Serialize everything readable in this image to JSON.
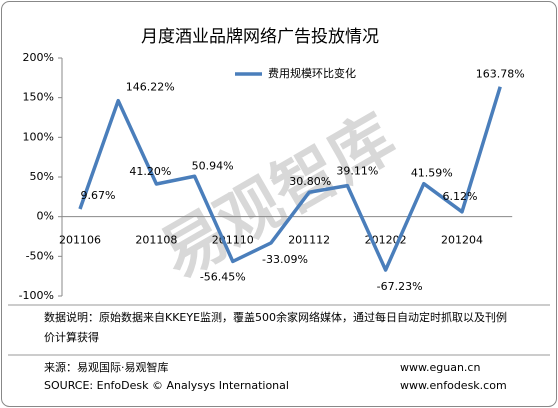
{
  "chart_data": {
    "type": "line",
    "title": "月度酒业品牌网络广告投放情况",
    "categories": [
      "201106",
      null,
      "201108",
      null,
      "201110",
      null,
      "201112",
      null,
      "201202",
      null,
      "201204",
      null
    ],
    "series": [
      {
        "name": "费用规模环比变化",
        "color": "#4a7ebb",
        "values": [
          9.67,
          146.22,
          41.2,
          50.94,
          -56.45,
          -33.09,
          30.8,
          39.11,
          -67.23,
          41.59,
          6.12,
          163.78
        ],
        "value_labels": [
          "9.67%",
          "146.22%",
          "41.20%",
          "50.94%",
          "-56.45%",
          "-33.09%",
          "30.80%",
          "39.11%",
          "-67.23%",
          "41.59%",
          "6.12%",
          "163.78%"
        ]
      }
    ],
    "ylim": [
      -100,
      200
    ],
    "yticks": [
      {
        "value": -100,
        "label": "-100%"
      },
      {
        "value": -50,
        "label": "-50%"
      },
      {
        "value": 0,
        "label": "0%"
      },
      {
        "value": 50,
        "label": "50%"
      },
      {
        "value": 100,
        "label": "100%"
      },
      {
        "value": 150,
        "label": "150%"
      },
      {
        "value": 200,
        "label": "200%"
      }
    ],
    "legend": "top-right",
    "watermark": "易观智库",
    "note": "数据说明：原始数据来自KKEYE监测，覆盖500余家网络媒体，通过每日自动定时抓取以及刊例价计算获得",
    "source_cn": "来源：易观国际·易观智库",
    "source_en": "SOURCE: EnfoDesk © Analysys International",
    "url1": "www.eguan.cn",
    "url2": "www.enfodesk.com"
  }
}
